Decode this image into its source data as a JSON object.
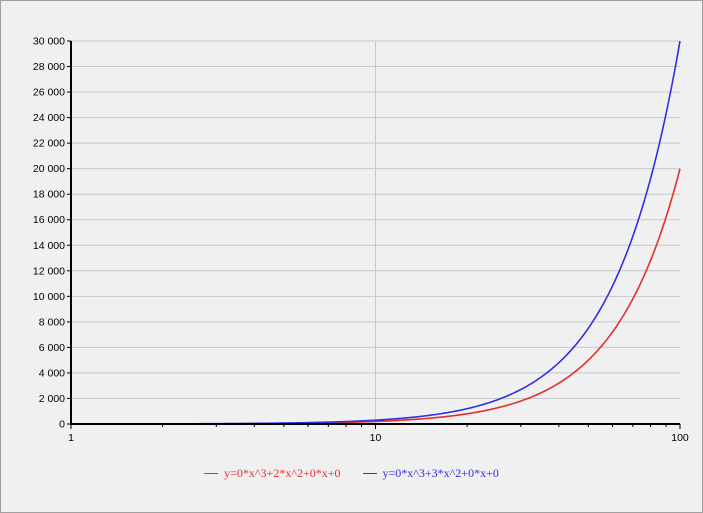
{
  "chart_data": {
    "type": "line",
    "x_scale": "log",
    "xlim": [
      1,
      100
    ],
    "ylim": [
      0,
      30000
    ],
    "x_ticks": [
      "1",
      "10",
      "100"
    ],
    "y_ticks": [
      "0",
      "2 000",
      "4 000",
      "6 000",
      "8 000",
      "10 000",
      "12 000",
      "14 000",
      "16 000",
      "18 000",
      "20 000",
      "22 000",
      "24 000",
      "26 000",
      "28 000",
      "30 000"
    ],
    "grid": true,
    "legend_position": "bottom",
    "series": [
      {
        "name": "y=0*x^3+2*x^2+0*x+0",
        "color": "#e03030",
        "x": [
          1,
          2,
          3,
          5,
          7,
          10,
          15,
          20,
          25,
          30,
          40,
          50,
          60,
          70,
          80,
          90,
          100
        ],
        "y": [
          2,
          8,
          18,
          50,
          98,
          200,
          450,
          800,
          1250,
          1800,
          3200,
          5000,
          7200,
          9800,
          12800,
          16200,
          20000
        ]
      },
      {
        "name": "y=0*x^3+3*x^2+0*x+0",
        "color": "#3030e0",
        "x": [
          1,
          2,
          3,
          5,
          7,
          10,
          15,
          20,
          25,
          30,
          40,
          50,
          60,
          70,
          80,
          90,
          100
        ],
        "y": [
          3,
          12,
          27,
          75,
          147,
          300,
          675,
          1200,
          1875,
          2700,
          4800,
          7500,
          10800,
          14700,
          19200,
          24300,
          30000
        ]
      }
    ]
  }
}
